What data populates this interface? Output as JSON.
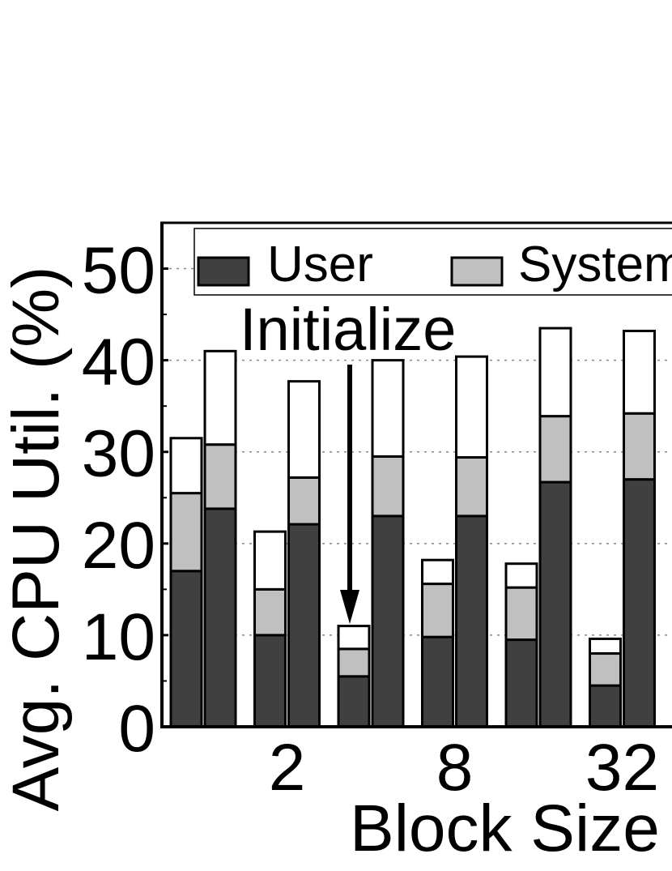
{
  "chart_data": {
    "type": "bar",
    "stacked": true,
    "ylabel": "Avg. CPU Util. (%)",
    "xlabel": "Block Size",
    "ylim": [
      0,
      55
    ],
    "yticks": [
      0,
      10,
      20,
      30,
      40,
      50
    ],
    "grid": true,
    "legend": {
      "placement": "top",
      "entries": [
        {
          "name": "User",
          "color": "#404040"
        },
        {
          "name": "System",
          "color": "#c0c0c0"
        }
      ]
    },
    "annotation": {
      "text": "Initialize",
      "points_to_group": 2,
      "points_to_bar": 0
    },
    "groups": [
      {
        "label": "",
        "bars": [
          {
            "user": 17,
            "system": 8.5,
            "other": 6
          },
          {
            "user": 23.8,
            "system": 7,
            "other": 10.2
          }
        ]
      },
      {
        "label": "2",
        "bars": [
          {
            "user": 10,
            "system": 5,
            "other": 6.3
          },
          {
            "user": 22.1,
            "system": 5.1,
            "other": 10.5
          }
        ]
      },
      {
        "label": "",
        "bars": [
          {
            "user": 5.5,
            "system": 3,
            "other": 2.5
          },
          {
            "user": 23,
            "system": 6.5,
            "other": 10.5
          }
        ]
      },
      {
        "label": "8",
        "bars": [
          {
            "user": 9.8,
            "system": 5.8,
            "other": 2.6
          },
          {
            "user": 23,
            "system": 6.4,
            "other": 11
          }
        ]
      },
      {
        "label": "",
        "bars": [
          {
            "user": 9.5,
            "system": 5.7,
            "other": 2.6
          },
          {
            "user": 26.7,
            "system": 7.2,
            "other": 9.6
          }
        ]
      },
      {
        "label": "32",
        "bars": [
          {
            "user": 4.5,
            "system": 3.5,
            "other": 1.6
          },
          {
            "user": 27,
            "system": 7.2,
            "other": 9
          }
        ]
      }
    ],
    "colors": {
      "user": "#404040",
      "system": "#c0c0c0",
      "other": "#ffffff"
    }
  }
}
